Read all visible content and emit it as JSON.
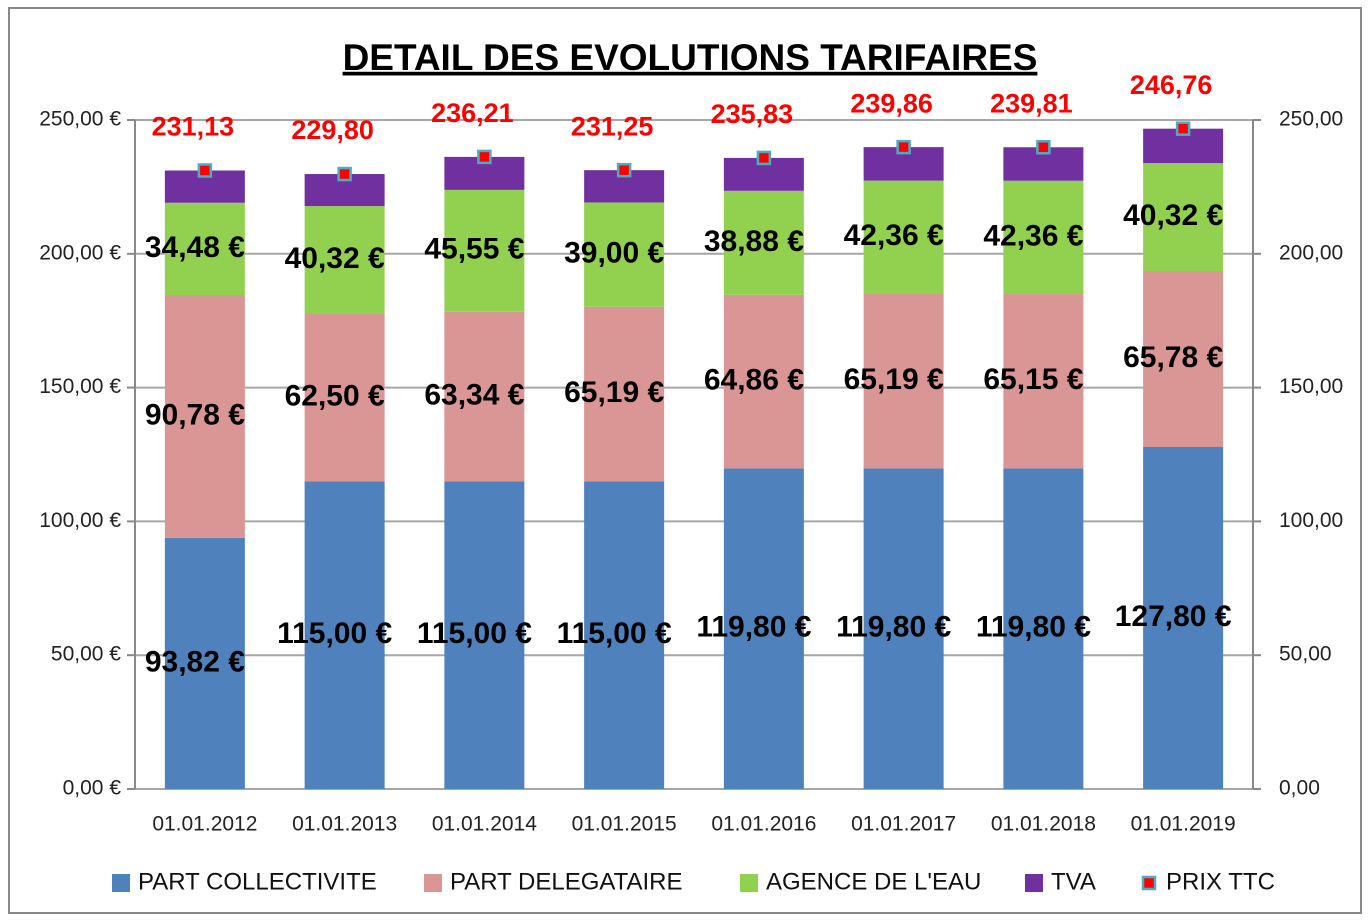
{
  "chart_data": {
    "type": "bar",
    "stacked": true,
    "title": "DETAIL DES EVOLUTIONS TARIFAIRES",
    "categories": [
      "01.01.2012",
      "01.01.2013",
      "01.01.2014",
      "01.01.2015",
      "01.01.2016",
      "01.01.2017",
      "01.01.2018",
      "01.01.2019"
    ],
    "series": [
      {
        "name": "PART COLLECTIVITE",
        "color": "#4f81bd",
        "values": [
          93.82,
          115.0,
          115.0,
          115.0,
          119.8,
          119.8,
          119.8,
          127.8
        ],
        "value_labels": [
          "93,82 €",
          "115,00 €",
          "115,00 €",
          "115,00 €",
          "119,80 €",
          "119,80 €",
          "119,80 €",
          "127,80 €"
        ]
      },
      {
        "name": "PART DELEGATAIRE",
        "color": "#d99694",
        "values": [
          90.78,
          62.5,
          63.34,
          65.19,
          64.86,
          65.19,
          65.15,
          65.78
        ],
        "value_labels": [
          "90,78 €",
          "62,50 €",
          "63,34 €",
          "65,19 €",
          "64,86 €",
          "65,19 €",
          "65,15 €",
          "65,78 €"
        ]
      },
      {
        "name": "AGENCE DE L'EAU",
        "color": "#92d050",
        "values": [
          34.48,
          40.32,
          45.55,
          39.0,
          38.88,
          42.36,
          42.36,
          40.32
        ],
        "value_labels": [
          "34,48 €",
          "40,32 €",
          "45,55 €",
          "39,00 €",
          "38,88 €",
          "42,36 €",
          "42,36 €",
          "40,32 €"
        ]
      },
      {
        "name": "TVA",
        "color": "#7030a0",
        "values": [
          12.05,
          11.98,
          12.32,
          12.06,
          12.29,
          12.51,
          12.5,
          12.86
        ]
      },
      {
        "name": "PRIX TTC",
        "type": "scatter",
        "axis": "y2",
        "color": "#ff0000",
        "edge_color": "#4bacc6",
        "values": [
          231.13,
          229.8,
          236.21,
          231.25,
          235.83,
          239.86,
          239.81,
          246.76
        ],
        "value_labels": [
          "231,13",
          "229,80",
          "236,21",
          "231,25",
          "235,83",
          "239,86",
          "239,81",
          "246,76"
        ]
      }
    ],
    "ylim": [
      0,
      250
    ],
    "yticks": [
      {
        "value": 0,
        "label": "0,00 €"
      },
      {
        "value": 50,
        "label": "50,00 €"
      },
      {
        "value": 100,
        "label": "100,00 €"
      },
      {
        "value": 150,
        "label": "150,00 €"
      },
      {
        "value": 200,
        "label": "200,00 €"
      },
      {
        "value": 250,
        "label": "250,00 €"
      }
    ],
    "y2lim": [
      0,
      250
    ],
    "y2ticks": [
      {
        "value": 0,
        "label": "0,00"
      },
      {
        "value": 50,
        "label": "50,00"
      },
      {
        "value": 100,
        "label": "100,00"
      },
      {
        "value": 150,
        "label": "150,00"
      },
      {
        "value": 200,
        "label": "200,00"
      },
      {
        "value": 250,
        "label": "250,00"
      }
    ],
    "grid": true,
    "legend": "bottom"
  }
}
